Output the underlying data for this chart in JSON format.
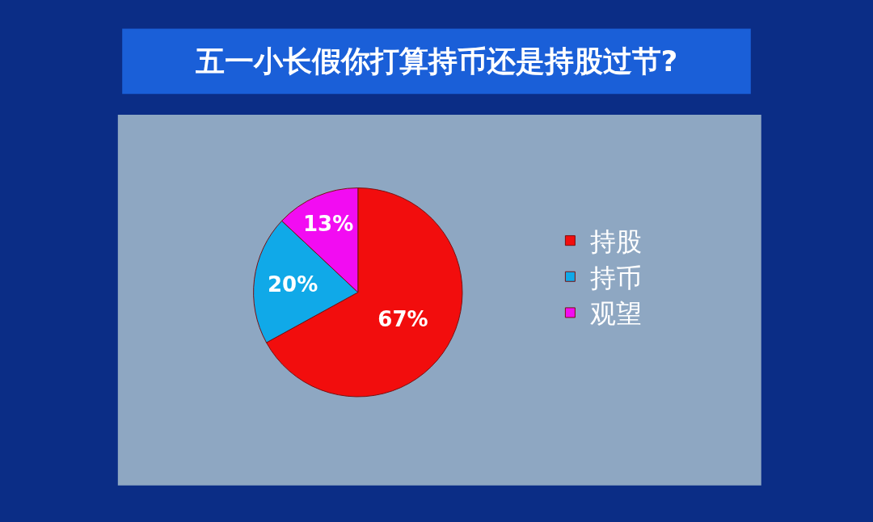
{
  "chart_data": {
    "type": "pie",
    "title": "五一小长假你打算持币还是持股过节?",
    "categories": [
      "持股",
      "持币",
      "观望"
    ],
    "values": [
      67,
      20,
      13
    ],
    "colors": [
      "#f20d0d",
      "#10a9e8",
      "#f20cf2"
    ],
    "value_labels": [
      "67%",
      "20%",
      "13%"
    ],
    "legend": "right"
  }
}
